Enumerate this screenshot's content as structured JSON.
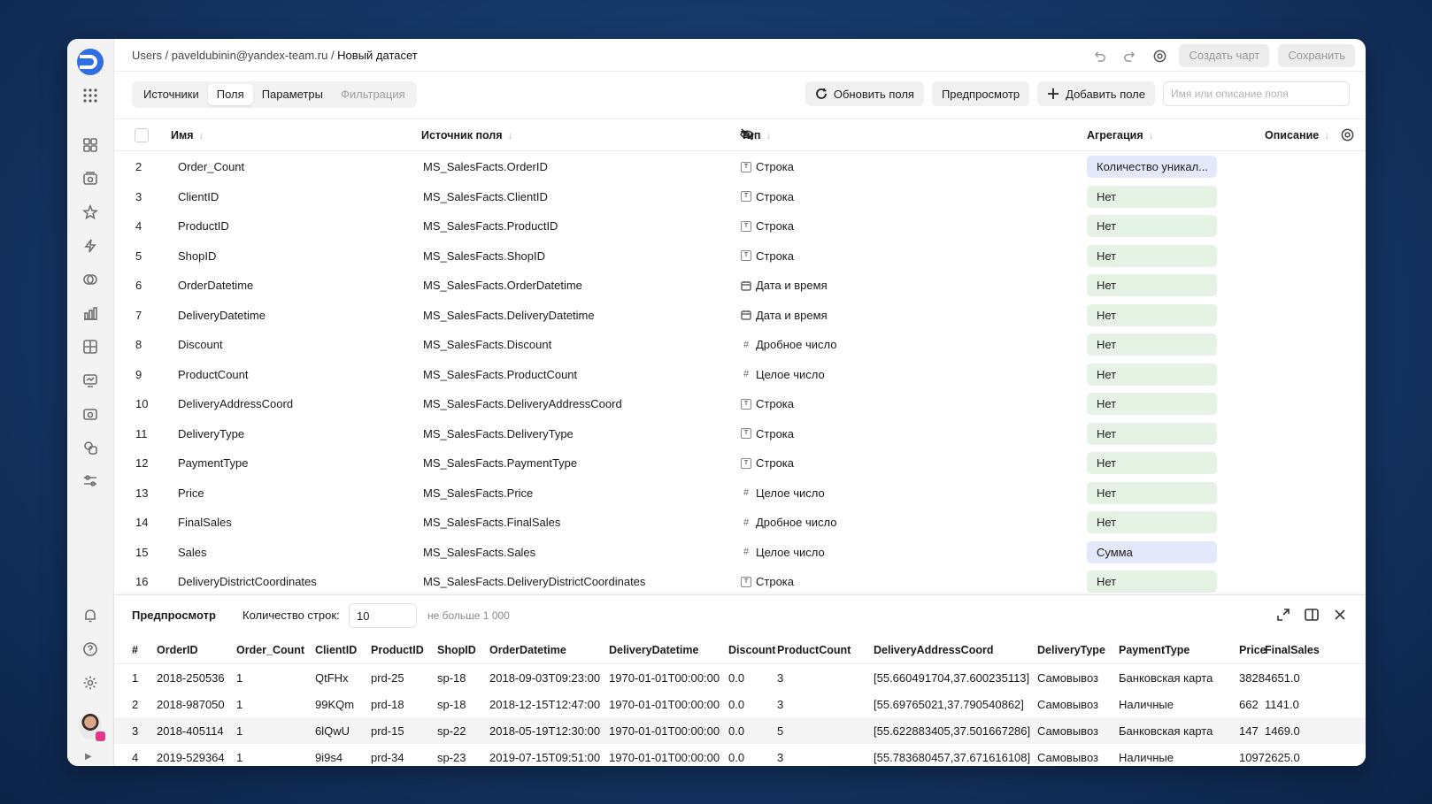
{
  "breadcrumb": {
    "part1": "Users / ",
    "part2": "paveldubinin@yandex-team.ru",
    "sep": " / ",
    "current": "Новый датасет"
  },
  "header": {
    "create_chart": "Создать чарт",
    "save": "Сохранить"
  },
  "tabs": [
    {
      "label": "Источники",
      "state": "normal"
    },
    {
      "label": "Поля",
      "state": "active"
    },
    {
      "label": "Параметры",
      "state": "normal"
    },
    {
      "label": "Фильтрация",
      "state": "disabled"
    }
  ],
  "toolbar": {
    "refresh_label": "Обновить поля",
    "preview_label": "Предпросмотр",
    "add_field_label": "Добавить поле",
    "search_placeholder": "Имя или описание поля"
  },
  "fields_table": {
    "columns": {
      "name": "Имя",
      "source": "Источник поля",
      "type": "Тип",
      "aggregation": "Агрегация",
      "description": "Описание"
    },
    "rows": [
      {
        "num": "2",
        "name": "Order_Count",
        "source": "MS_SalesFacts.OrderID",
        "type": "Строка",
        "type_icon": "string",
        "agg": "Количество уникал...",
        "agg_state": "set"
      },
      {
        "num": "3",
        "name": "ClientID",
        "source": "MS_SalesFacts.ClientID",
        "type": "Строка",
        "type_icon": "string",
        "agg": "Нет",
        "agg_state": "none"
      },
      {
        "num": "4",
        "name": "ProductID",
        "source": "MS_SalesFacts.ProductID",
        "type": "Строка",
        "type_icon": "string",
        "agg": "Нет",
        "agg_state": "none"
      },
      {
        "num": "5",
        "name": "ShopID",
        "source": "MS_SalesFacts.ShopID",
        "type": "Строка",
        "type_icon": "string",
        "agg": "Нет",
        "agg_state": "none"
      },
      {
        "num": "6",
        "name": "OrderDatetime",
        "source": "MS_SalesFacts.OrderDatetime",
        "type": "Дата и время",
        "type_icon": "calendar",
        "agg": "Нет",
        "agg_state": "none"
      },
      {
        "num": "7",
        "name": "DeliveryDatetime",
        "source": "MS_SalesFacts.DeliveryDatetime",
        "type": "Дата и время",
        "type_icon": "calendar",
        "agg": "Нет",
        "agg_state": "none"
      },
      {
        "num": "8",
        "name": "Discount",
        "source": "MS_SalesFacts.Discount",
        "type": "Дробное число",
        "type_icon": "hash",
        "agg": "Нет",
        "agg_state": "none"
      },
      {
        "num": "9",
        "name": "ProductCount",
        "source": "MS_SalesFacts.ProductCount",
        "type": "Целое число",
        "type_icon": "hash",
        "agg": "Нет",
        "agg_state": "none"
      },
      {
        "num": "10",
        "name": "DeliveryAddressCoord",
        "source": "MS_SalesFacts.DeliveryAddressCoord",
        "type": "Строка",
        "type_icon": "string",
        "agg": "Нет",
        "agg_state": "none"
      },
      {
        "num": "11",
        "name": "DeliveryType",
        "source": "MS_SalesFacts.DeliveryType",
        "type": "Строка",
        "type_icon": "string",
        "agg": "Нет",
        "agg_state": "none"
      },
      {
        "num": "12",
        "name": "PaymentType",
        "source": "MS_SalesFacts.PaymentType",
        "type": "Строка",
        "type_icon": "string",
        "agg": "Нет",
        "agg_state": "none"
      },
      {
        "num": "13",
        "name": "Price",
        "source": "MS_SalesFacts.Price",
        "type": "Целое число",
        "type_icon": "hash",
        "agg": "Нет",
        "agg_state": "none"
      },
      {
        "num": "14",
        "name": "FinalSales",
        "source": "MS_SalesFacts.FinalSales",
        "type": "Дробное число",
        "type_icon": "hash",
        "agg": "Нет",
        "agg_state": "none"
      },
      {
        "num": "15",
        "name": "Sales",
        "source": "MS_SalesFacts.Sales",
        "type": "Целое число",
        "type_icon": "hash",
        "agg": "Сумма",
        "agg_state": "set"
      },
      {
        "num": "16",
        "name": "DeliveryDistrictCoordinates",
        "source": "MS_SalesFacts.DeliveryDistrictCoordinates",
        "type": "Строка",
        "type_icon": "string",
        "agg": "Нет",
        "agg_state": "none"
      }
    ]
  },
  "preview": {
    "title": "Предпросмотр",
    "rows_label": "Количество строк:",
    "rows_value": "10",
    "rows_hint": "не больше 1 000",
    "columns": [
      "#",
      "OrderID",
      "Order_Count",
      "ClientID",
      "ProductID",
      "ShopID",
      "OrderDatetime",
      "DeliveryDatetime",
      "Discount",
      "ProductCount",
      "DeliveryAddressCoord",
      "DeliveryType",
      "PaymentType",
      "Price",
      "FinalSales"
    ],
    "rows": [
      [
        "1",
        "2018-250536",
        "1",
        "QtFHx",
        "prd-25",
        "sp-18",
        "2018-09-03T09:23:00",
        "1970-01-01T00:00:00",
        "0.0",
        "3",
        "[55.660491704,37.600235113]",
        "Самовывоз",
        "Банковская карта",
        "3828",
        "4651.0"
      ],
      [
        "2",
        "2018-987050",
        "1",
        "99KQm",
        "prd-18",
        "sp-18",
        "2018-12-15T12:47:00",
        "1970-01-01T00:00:00",
        "0.0",
        "3",
        "[55.69765021,37.790540862]",
        "Самовывоз",
        "Наличные",
        "662",
        "1141.0"
      ],
      [
        "3",
        "2018-405114",
        "1",
        "6lQwU",
        "prd-15",
        "sp-22",
        "2018-05-19T12:30:00",
        "1970-01-01T00:00:00",
        "0.0",
        "5",
        "[55.622883405,37.501667286]",
        "Самовывоз",
        "Банковская карта",
        "147",
        "1469.0"
      ],
      [
        "4",
        "2019-529364",
        "1",
        "9i9s4",
        "prd-34",
        "sp-23",
        "2019-07-15T09:51:00",
        "1970-01-01T00:00:00",
        "0.0",
        "3",
        "[55.783680457,37.671616108]",
        "Самовывоз",
        "Наличные",
        "1097",
        "2625.0"
      ]
    ]
  }
}
